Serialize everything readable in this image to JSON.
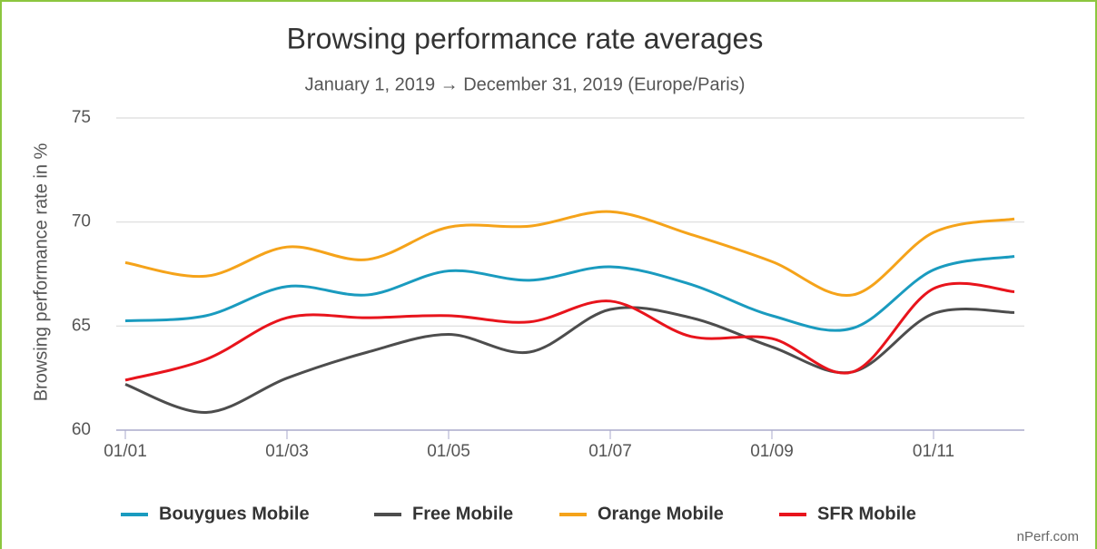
{
  "chart_data": {
    "type": "line",
    "title": "Browsing performance rate averages",
    "subtitle": "January 1, 2019 → December 31, 2019 (Europe/Paris)",
    "y_label": "Browsing performance rate in %",
    "credit": "nPerf.com",
    "categories": [
      "01/01",
      null,
      "01/03",
      null,
      "01/05",
      null,
      "01/07",
      null,
      "01/09",
      null,
      "01/11",
      null
    ],
    "series": [
      {
        "name": "Bouygues Mobile",
        "color": "#1a9bbf",
        "values": [
          65.25,
          65.5,
          66.9,
          66.5,
          67.65,
          67.2,
          67.85,
          67.0,
          65.5,
          64.9,
          67.7,
          68.35
        ]
      },
      {
        "name": "Free Mobile",
        "color": "#4d4d4d",
        "values": [
          62.2,
          60.85,
          62.5,
          63.75,
          64.6,
          63.75,
          65.8,
          65.4,
          64.0,
          62.8,
          65.6,
          65.65
        ]
      },
      {
        "name": "Orange Mobile",
        "color": "#f5a31a",
        "values": [
          68.05,
          67.4,
          68.8,
          68.2,
          69.75,
          69.8,
          70.5,
          69.4,
          68.1,
          66.5,
          69.5,
          70.15
        ]
      },
      {
        "name": "SFR Mobile",
        "color": "#e8141c",
        "values": [
          62.4,
          63.4,
          65.4,
          65.4,
          65.5,
          65.2,
          66.2,
          64.5,
          64.4,
          62.8,
          66.8,
          66.65
        ]
      }
    ],
    "ylim": [
      60,
      75
    ],
    "yticks": [
      60,
      65,
      70,
      75
    ],
    "grid": true,
    "legend": "bottom"
  }
}
